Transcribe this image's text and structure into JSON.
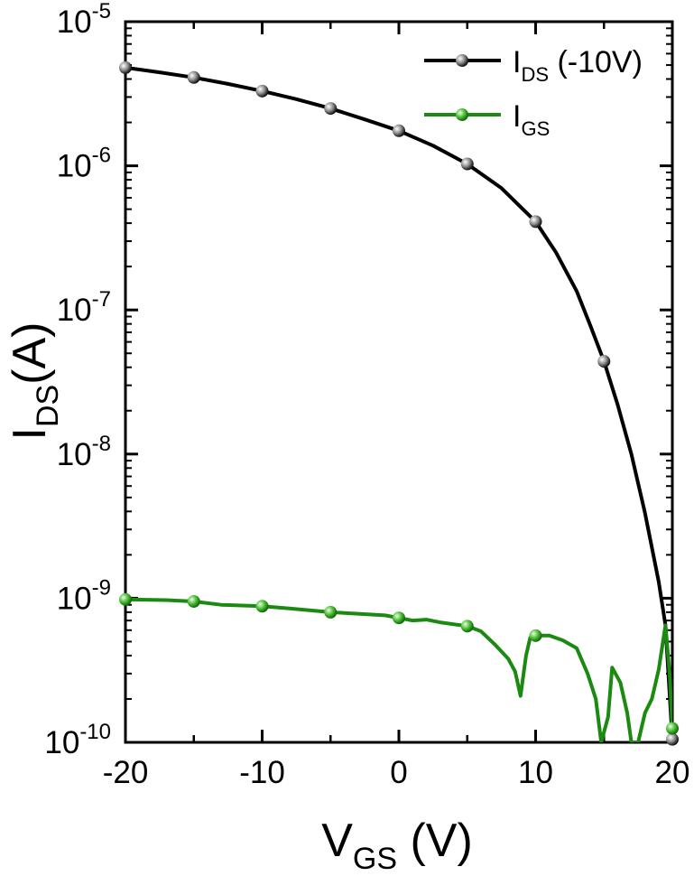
{
  "chart_data": {
    "type": "line",
    "xlabel": {
      "main": "V",
      "sub": "GS",
      "suffix": " (V)"
    },
    "ylabel": {
      "main": "I",
      "sub": "DS",
      "suffix": "(A)"
    },
    "xlim": [
      -20,
      20
    ],
    "ylim": [
      1e-10,
      1e-05
    ],
    "yscale": "log",
    "grid": false,
    "legend_position": "top-right",
    "x_ticks": [
      {
        "value": -20,
        "label": "-20"
      },
      {
        "value": -10,
        "label": "-10"
      },
      {
        "value": 0,
        "label": "0"
      },
      {
        "value": 10,
        "label": "10"
      },
      {
        "value": 20,
        "label": "20"
      }
    ],
    "y_ticks": [
      {
        "value": 1e-10,
        "base": "10",
        "exp": "-10"
      },
      {
        "value": 1e-09,
        "base": "10",
        "exp": "-9"
      },
      {
        "value": 1e-08,
        "base": "10",
        "exp": "-8"
      },
      {
        "value": 1e-07,
        "base": "10",
        "exp": "-7"
      },
      {
        "value": 1e-06,
        "base": "10",
        "exp": "-6"
      },
      {
        "value": 1e-05,
        "base": "10",
        "exp": "-5"
      }
    ],
    "series": [
      {
        "legend": {
          "main": "I",
          "sub": "DS",
          "suffix": " (-10V)"
        },
        "color": "#000000",
        "marker_color": "#555555",
        "line": [
          [
            -20,
            4.8e-06
          ],
          [
            -17.5,
            4.45e-06
          ],
          [
            -15,
            4.1e-06
          ],
          [
            -12.5,
            3.7e-06
          ],
          [
            -10,
            3.3e-06
          ],
          [
            -7.5,
            2.9e-06
          ],
          [
            -5,
            2.5e-06
          ],
          [
            -2.5,
            2.1e-06
          ],
          [
            0,
            1.75e-06
          ],
          [
            2.5,
            1.38e-06
          ],
          [
            5,
            1.03e-06
          ],
          [
            7.5,
            7e-07
          ],
          [
            10,
            4.1e-07
          ],
          [
            11.5,
            2.5e-07
          ],
          [
            13,
            1.35e-07
          ],
          [
            14,
            7.8e-08
          ],
          [
            15,
            4.4e-08
          ],
          [
            16,
            2.2e-08
          ],
          [
            17,
            1e-08
          ],
          [
            18,
            3.9e-09
          ],
          [
            19,
            1.3e-09
          ],
          [
            19.5,
            6.5e-10
          ],
          [
            20,
            1.05e-10
          ]
        ],
        "markers": [
          [
            -20,
            4.8e-06
          ],
          [
            -15,
            4.1e-06
          ],
          [
            -10,
            3.3e-06
          ],
          [
            -5,
            2.5e-06
          ],
          [
            0,
            1.75e-06
          ],
          [
            5,
            1.03e-06
          ],
          [
            10,
            4.1e-07
          ],
          [
            15,
            4.4e-08
          ],
          [
            20,
            1.05e-10
          ]
        ]
      },
      {
        "legend": {
          "main": "I",
          "sub": "GS",
          "suffix": ""
        },
        "color": "#1a8a10",
        "marker_color": "#3fae2e",
        "line": [
          [
            -20,
            9.8e-10
          ],
          [
            -17,
            9.7e-10
          ],
          [
            -15,
            9.5e-10
          ],
          [
            -13,
            9e-10
          ],
          [
            -10,
            8.8e-10
          ],
          [
            -8,
            8.5e-10
          ],
          [
            -5,
            8e-10
          ],
          [
            -3,
            7.8e-10
          ],
          [
            -1,
            7.6e-10
          ],
          [
            0,
            7.3e-10
          ],
          [
            1,
            7e-10
          ],
          [
            2,
            7.1e-10
          ],
          [
            3,
            6.8e-10
          ],
          [
            5,
            6.4e-10
          ],
          [
            6,
            5.9e-10
          ],
          [
            7,
            4.8e-10
          ],
          [
            8,
            3.8e-10
          ],
          [
            8.5,
            3.1e-10
          ],
          [
            8.9,
            2.1e-10
          ],
          [
            9.3,
            4e-10
          ],
          [
            9.6,
            5.3e-10
          ],
          [
            10,
            5.5e-10
          ],
          [
            11,
            5.5e-10
          ],
          [
            12,
            5.1e-10
          ],
          [
            13,
            4.5e-10
          ],
          [
            13.8,
            3e-10
          ],
          [
            14.4,
            2e-10
          ],
          [
            14.8,
            1e-10
          ],
          [
            15.3,
            1.5e-10
          ],
          [
            15.6,
            3.3e-10
          ],
          [
            16.2,
            2.6e-10
          ],
          [
            16.7,
            1.6e-10
          ],
          [
            17.0,
            1e-10
          ],
          [
            17.5,
            1e-10
          ],
          [
            18.0,
            1.6e-10
          ],
          [
            18.5,
            2e-10
          ],
          [
            19.0,
            3.2e-10
          ],
          [
            19.5,
            6.5e-10
          ],
          [
            19.8,
            3e-10
          ],
          [
            20,
            1.25e-10
          ]
        ],
        "markers": [
          [
            -20,
            9.8e-10
          ],
          [
            -15,
            9.5e-10
          ],
          [
            -10,
            8.8e-10
          ],
          [
            -5,
            8e-10
          ],
          [
            0,
            7.3e-10
          ],
          [
            5,
            6.4e-10
          ],
          [
            10,
            5.5e-10
          ],
          [
            20,
            1.25e-10
          ]
        ]
      }
    ]
  }
}
